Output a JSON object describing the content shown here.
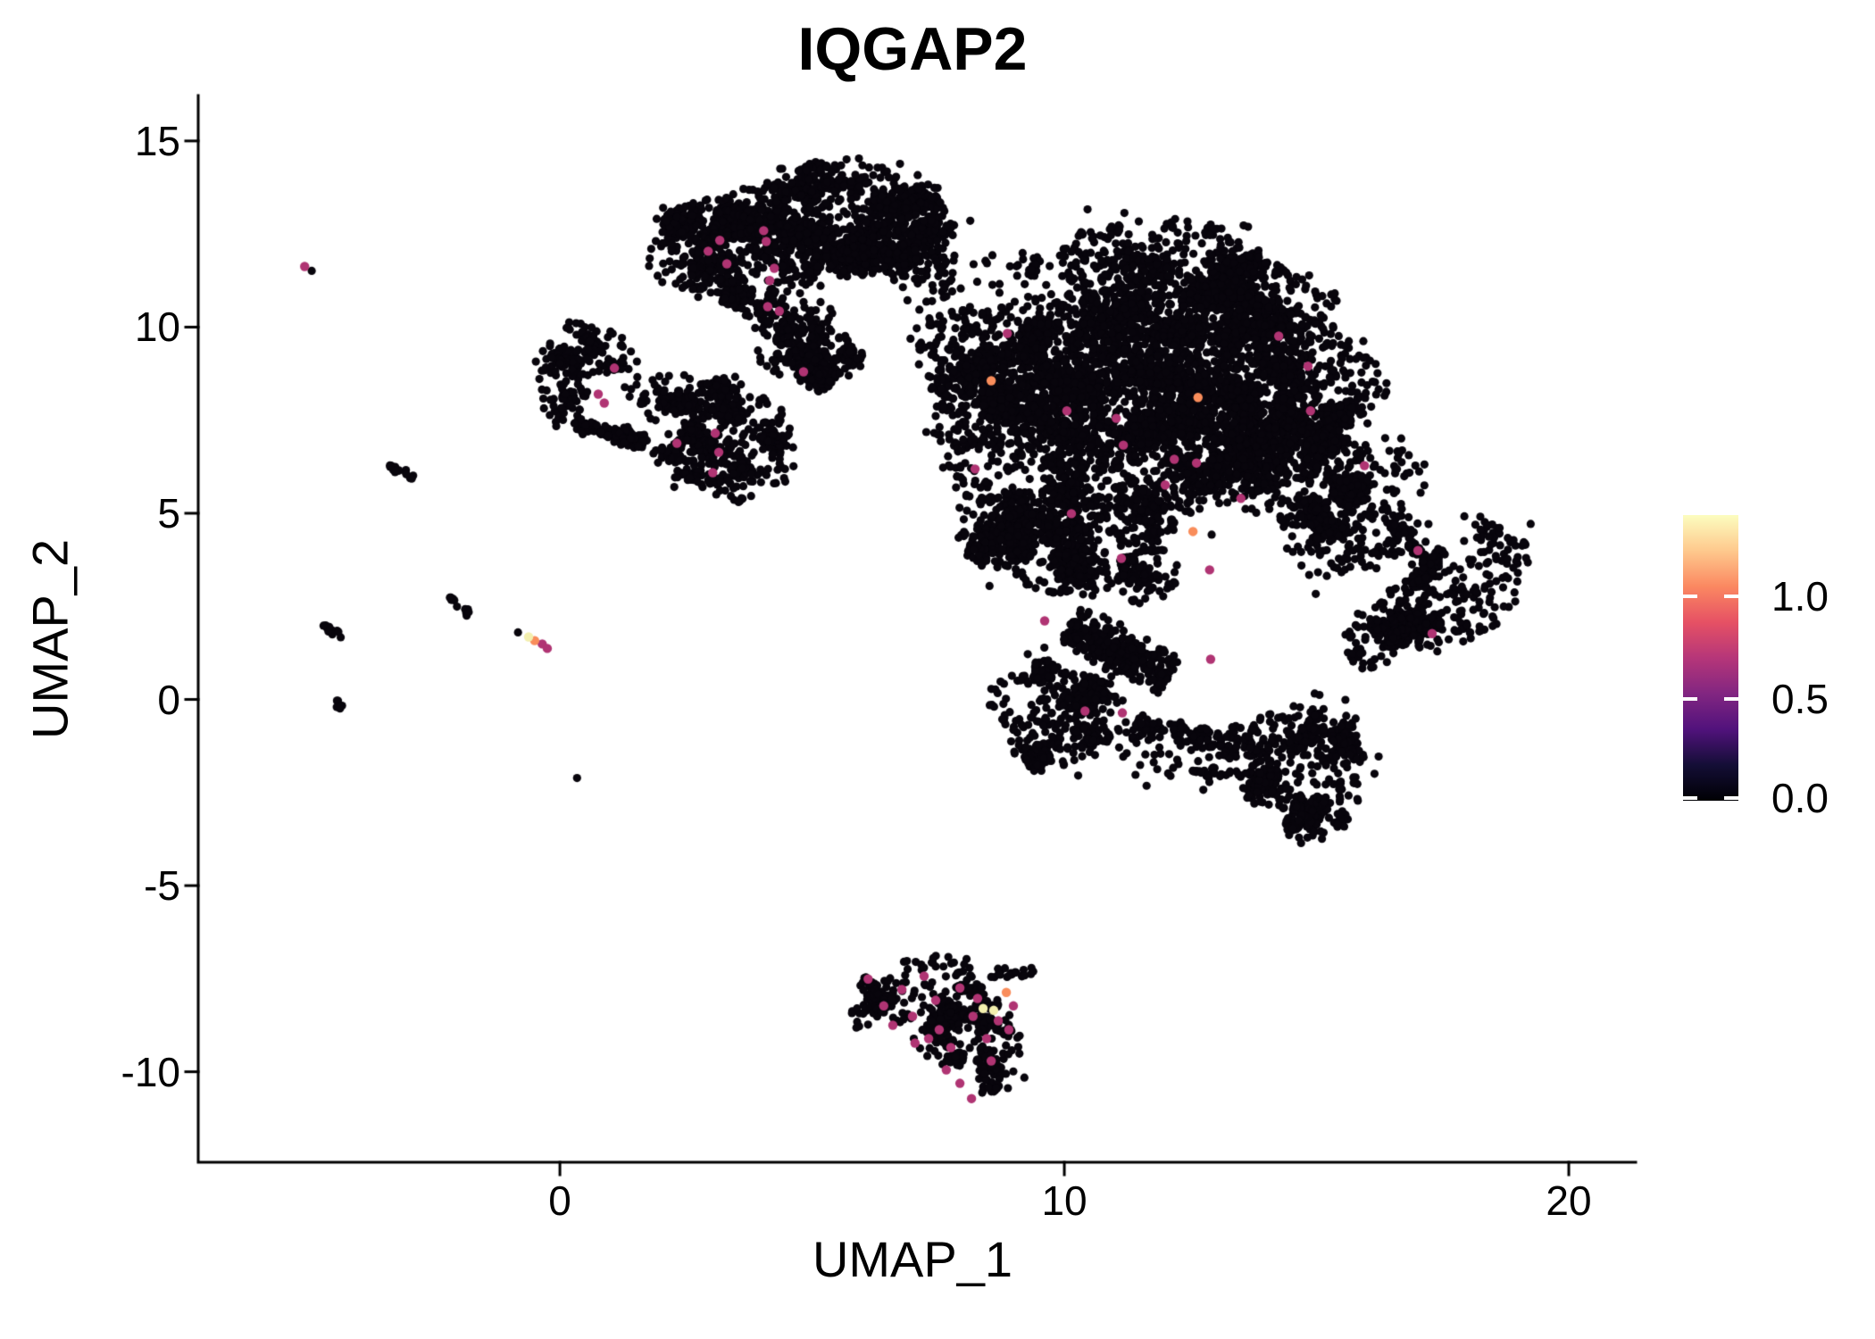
{
  "chart_data": {
    "type": "scatter",
    "title": "IQGAP2",
    "xlabel": "UMAP_1",
    "ylabel": "UMAP_2",
    "xlim": [
      -7.17,
      21.15
    ],
    "ylim": [
      -12.43,
      16.22
    ],
    "grid": false,
    "background": "#ffffff",
    "axis_color": "#000000",
    "point_base_color": "#08050c",
    "point_radius_px": 4.6,
    "highlight_radius_px": 5.2,
    "seed": 20,
    "x_ticks": [
      {
        "value": 0,
        "label": "0"
      },
      {
        "value": 10,
        "label": "10"
      },
      {
        "value": 20,
        "label": "20"
      }
    ],
    "y_ticks": [
      {
        "value": 15,
        "label": "15"
      },
      {
        "value": 10,
        "label": "10"
      },
      {
        "value": 5,
        "label": "5"
      },
      {
        "value": 0,
        "label": "0"
      },
      {
        "value": -5,
        "label": "-5"
      },
      {
        "value": -10,
        "label": "-10"
      }
    ],
    "colorbar": {
      "vmin": 0.0,
      "vmax": 1.4,
      "ticks": [
        {
          "value": 0.0,
          "label": "0.0"
        },
        {
          "value": 0.5,
          "label": "0.5"
        },
        {
          "value": 1.0,
          "label": "1.0"
        }
      ],
      "colormap": "magma",
      "stops": [
        [
          0.0,
          "#000004"
        ],
        [
          0.125,
          "#140e36"
        ],
        [
          0.25,
          "#51127c"
        ],
        [
          0.375,
          "#822681"
        ],
        [
          0.5,
          "#b63679"
        ],
        [
          0.625,
          "#e65164"
        ],
        [
          0.75,
          "#fb8861"
        ],
        [
          0.875,
          "#fec98d"
        ],
        [
          1.0,
          "#fcfdbf"
        ]
      ]
    },
    "highlight_levels": {
      "mid": {
        "color": "#b03473",
        "approx_value": 0.7
      },
      "high": {
        "color": "#f98d5b",
        "approx_value": 1.0
      },
      "max": {
        "color": "#f3efae",
        "approx_value": 1.3
      }
    },
    "clusters": [
      {
        "kind": "blob",
        "cx": 3.59,
        "cy": 12.11,
        "rx": 1.68,
        "ry": 1.68,
        "rot": 0,
        "n": 850
      },
      {
        "kind": "blob",
        "cx": 5.72,
        "cy": 12.71,
        "rx": 2.12,
        "ry": 1.6,
        "rot": 0,
        "n": 1000
      },
      {
        "kind": "blob",
        "cx": 6.78,
        "cy": 12.47,
        "rx": 1.06,
        "ry": 1.3,
        "rot": 0,
        "n": 300
      },
      {
        "kind": "blob",
        "cx": 5.0,
        "cy": 13.9,
        "rx": 0.85,
        "ry": 0.55,
        "rot": 0,
        "n": 120
      },
      {
        "kind": "strip",
        "x1": 3.95,
        "y1": 10.67,
        "x2": 5.36,
        "y2": 8.51,
        "w": 0.9,
        "n": 180
      },
      {
        "kind": "blob",
        "cx": 4.92,
        "cy": 9.47,
        "rx": 0.97,
        "ry": 1.18,
        "rot": 0,
        "n": 240
      },
      {
        "kind": "blob",
        "cx": 0.5,
        "cy": 9.3,
        "rx": 0.95,
        "ry": 0.78,
        "rot": 0,
        "n": 150
      },
      {
        "kind": "blob",
        "cx": 0.05,
        "cy": 8.3,
        "rx": 0.48,
        "ry": 0.92,
        "rot": 0,
        "n": 90
      },
      {
        "kind": "strip",
        "x1": 0.3,
        "y1": 7.4,
        "x2": 1.7,
        "y2": 6.93,
        "w": 0.36,
        "n": 90
      },
      {
        "kind": "blob",
        "cx": 1.38,
        "cy": 7.05,
        "rx": 0.3,
        "ry": 0.3,
        "rot": 0,
        "n": 40
      },
      {
        "kind": "blob",
        "cx": 3.27,
        "cy": 7.27,
        "rx": 1.5,
        "ry": 1.22,
        "rot": 25,
        "n": 500
      },
      {
        "kind": "blob",
        "cx": 2.88,
        "cy": 6.4,
        "rx": 1.06,
        "ry": 0.85,
        "rot": 25,
        "n": 220
      },
      {
        "kind": "blob",
        "cx": 9.26,
        "cy": 8.75,
        "rx": 2.12,
        "ry": 2.25,
        "rot": 0,
        "n": 1250
      },
      {
        "kind": "blob",
        "cx": 12.27,
        "cy": 10.91,
        "rx": 2.65,
        "ry": 1.9,
        "rot": 4,
        "n": 1500
      },
      {
        "kind": "blob",
        "cx": 11.91,
        "cy": 7.31,
        "rx": 2.83,
        "ry": 2.6,
        "rot": 0,
        "n": 2000
      },
      {
        "kind": "blob",
        "cx": 14.57,
        "cy": 8.27,
        "rx": 1.59,
        "ry": 2.1,
        "rot": 0,
        "n": 850
      },
      {
        "kind": "blob",
        "cx": 15.45,
        "cy": 5.4,
        "rx": 1.59,
        "ry": 1.9,
        "rot": 0,
        "n": 700
      },
      {
        "kind": "blob",
        "cx": 10.5,
        "cy": 4.44,
        "rx": 1.95,
        "ry": 1.9,
        "rot": 0,
        "n": 800
      },
      {
        "kind": "blob",
        "cx": 8.9,
        "cy": 5.4,
        "rx": 1.24,
        "ry": 1.9,
        "rot": 0,
        "n": 400
      },
      {
        "kind": "blob",
        "cx": 9.79,
        "cy": -0.36,
        "rx": 1.24,
        "ry": 1.42,
        "rot": 0,
        "n": 420
      },
      {
        "kind": "strip",
        "x1": 10.14,
        "y1": 2.04,
        "x2": 12.09,
        "y2": 0.6,
        "w": 0.95,
        "n": 280
      },
      {
        "kind": "strip",
        "x1": 11.38,
        "y1": -0.72,
        "x2": 13.68,
        "y2": -1.32,
        "w": 0.55,
        "n": 110
      },
      {
        "kind": "blob",
        "cx": 17.49,
        "cy": 2.71,
        "rx": 2.12,
        "ry": 1.22,
        "rot": -33,
        "n": 620
      },
      {
        "kind": "blob",
        "cx": 14.78,
        "cy": -1.68,
        "rx": 1.33,
        "ry": 1.75,
        "rot": 0,
        "n": 500
      },
      {
        "kind": "blob",
        "cx": 14.92,
        "cy": -3.24,
        "rx": 0.62,
        "ry": 0.7,
        "rot": 0,
        "n": 100
      },
      {
        "kind": "blob",
        "cx": 7.58,
        "cy": 11.63,
        "rx": 0.85,
        "ry": 1.25,
        "rot": 0,
        "n": 40
      },
      {
        "kind": "blob",
        "cx": 8.05,
        "cy": 7.2,
        "rx": 0.7,
        "ry": 1.8,
        "rot": 0,
        "n": 45
      },
      {
        "kind": "blob",
        "cx": 10.6,
        "cy": -0.95,
        "rx": 1.55,
        "ry": 0.62,
        "rot": 0,
        "n": 55
      },
      {
        "kind": "blob",
        "cx": 13.9,
        "cy": -1.4,
        "rx": 1.25,
        "ry": 0.85,
        "rot": 0,
        "n": 45
      },
      {
        "kind": "blob",
        "cx": 16.4,
        "cy": 4.3,
        "rx": 0.95,
        "ry": 0.95,
        "rot": 0,
        "n": 55
      },
      {
        "kind": "blob",
        "cx": 7.3,
        "cy": 12.9,
        "rx": 0.8,
        "ry": 0.7,
        "rot": 0,
        "n": 28
      },
      {
        "kind": "blob",
        "cx": 1.9,
        "cy": 8.3,
        "rx": 0.95,
        "ry": 0.5,
        "rot": 0,
        "n": 22
      },
      {
        "kind": "blob",
        "cx": 9.0,
        "cy": 11.5,
        "rx": 0.9,
        "ry": 0.8,
        "rot": 0,
        "n": 30
      },
      {
        "kind": "blob",
        "cx": 12.2,
        "cy": -1.9,
        "rx": 1.3,
        "ry": 0.7,
        "rot": 0,
        "n": 40
      },
      {
        "kind": "blob",
        "cx": 7.31,
        "cy": -8.03,
        "rx": 1.42,
        "ry": 1.08,
        "rot": -6,
        "n": 270
      },
      {
        "kind": "blob",
        "cx": 8.19,
        "cy": -8.99,
        "rx": 0.97,
        "ry": 1.18,
        "rot": 0,
        "n": 190
      },
      {
        "kind": "blob",
        "cx": 8.64,
        "cy": -9.95,
        "rx": 0.53,
        "ry": 0.65,
        "rot": 0,
        "n": 70
      },
      {
        "kind": "strip",
        "x1": 8.46,
        "y1": -7.43,
        "x2": 9.58,
        "y2": -7.27,
        "w": 0.28,
        "n": 20
      },
      {
        "kind": "strip",
        "x1": 5.98,
        "y1": -7.45,
        "x2": 6.42,
        "y2": -8.4,
        "w": 0.3,
        "n": 40
      },
      {
        "kind": "strip",
        "x1": -3.42,
        "y1": 6.35,
        "x2": -2.81,
        "y2": 5.92,
        "w": 0.18,
        "n": 16
      },
      {
        "kind": "strip",
        "x1": -4.67,
        "y1": 2.04,
        "x2": -4.32,
        "y2": 1.65,
        "w": 0.16,
        "n": 11
      },
      {
        "kind": "strip",
        "x1": -2.18,
        "y1": 2.73,
        "x2": -1.77,
        "y2": 2.3,
        "w": 0.16,
        "n": 13
      },
      {
        "kind": "strip",
        "x1": -4.44,
        "y1": -0.05,
        "x2": -4.21,
        "y2": -0.31,
        "w": 0.14,
        "n": 8
      }
    ],
    "isolated_points": [
      {
        "x": -4.92,
        "y": 11.51
      },
      {
        "x": 0.34,
        "y": -2.11
      },
      {
        "x": -0.83,
        "y": 1.8
      }
    ],
    "expressing_cells": {
      "mid": [
        [
          3.17,
          12.33
        ],
        [
          4.04,
          12.59
        ],
        [
          4.09,
          12.3
        ],
        [
          2.94,
          12.04
        ],
        [
          3.31,
          11.7
        ],
        [
          4.25,
          11.58
        ],
        [
          4.16,
          11.25
        ],
        [
          4.12,
          10.55
        ],
        [
          4.35,
          10.43
        ],
        [
          4.83,
          8.8
        ],
        [
          1.08,
          8.9
        ],
        [
          0.76,
          8.2
        ],
        [
          0.88,
          7.96
        ],
        [
          3.08,
          7.15
        ],
        [
          3.15,
          6.64
        ],
        [
          3.03,
          6.09
        ],
        [
          2.32,
          6.88
        ],
        [
          8.87,
          9.83
        ],
        [
          10.05,
          7.75
        ],
        [
          11.03,
          7.55
        ],
        [
          11.17,
          6.83
        ],
        [
          12.18,
          6.45
        ],
        [
          12.0,
          5.76
        ],
        [
          8.23,
          6.19
        ],
        [
          10.14,
          4.99
        ],
        [
          11.13,
          3.79
        ],
        [
          12.62,
          6.35
        ],
        [
          13.5,
          5.4
        ],
        [
          12.88,
          3.48
        ],
        [
          14.25,
          9.76
        ],
        [
          14.83,
          8.95
        ],
        [
          14.88,
          7.75
        ],
        [
          15.95,
          6.28
        ],
        [
          17.01,
          4.0
        ],
        [
          17.29,
          1.77
        ],
        [
          10.41,
          -0.31
        ],
        [
          11.15,
          -0.36
        ],
        [
          9.61,
          2.11
        ],
        [
          12.9,
          1.08
        ],
        [
          6.11,
          -7.51
        ],
        [
          6.42,
          -8.23
        ],
        [
          6.6,
          -8.75
        ],
        [
          6.78,
          -7.79
        ],
        [
          6.99,
          -8.51
        ],
        [
          7.22,
          -7.43
        ],
        [
          7.45,
          -8.08
        ],
        [
          7.52,
          -8.87
        ],
        [
          7.75,
          -9.35
        ],
        [
          7.31,
          -9.11
        ],
        [
          7.93,
          -7.75
        ],
        [
          8.19,
          -8.51
        ],
        [
          8.46,
          -9.11
        ],
        [
          8.69,
          -8.63
        ],
        [
          7.66,
          -9.95
        ],
        [
          7.93,
          -10.31
        ],
        [
          8.16,
          -10.72
        ],
        [
          8.55,
          -9.71
        ],
        [
          8.9,
          -8.87
        ],
        [
          8.99,
          -8.23
        ],
        [
          8.28,
          -8.03
        ],
        [
          7.04,
          -9.23
        ],
        [
          -5.06,
          11.63
        ],
        [
          -0.35,
          1.49
        ],
        [
          -0.25,
          1.37
        ]
      ],
      "high": [
        [
          8.55,
          8.56
        ],
        [
          12.65,
          8.11
        ],
        [
          12.55,
          4.51
        ],
        [
          8.85,
          -7.87
        ],
        [
          -0.5,
          1.58
        ]
      ],
      "max": [
        [
          8.39,
          -8.3
        ],
        [
          8.6,
          -8.35
        ],
        [
          -0.62,
          1.68
        ]
      ]
    }
  }
}
